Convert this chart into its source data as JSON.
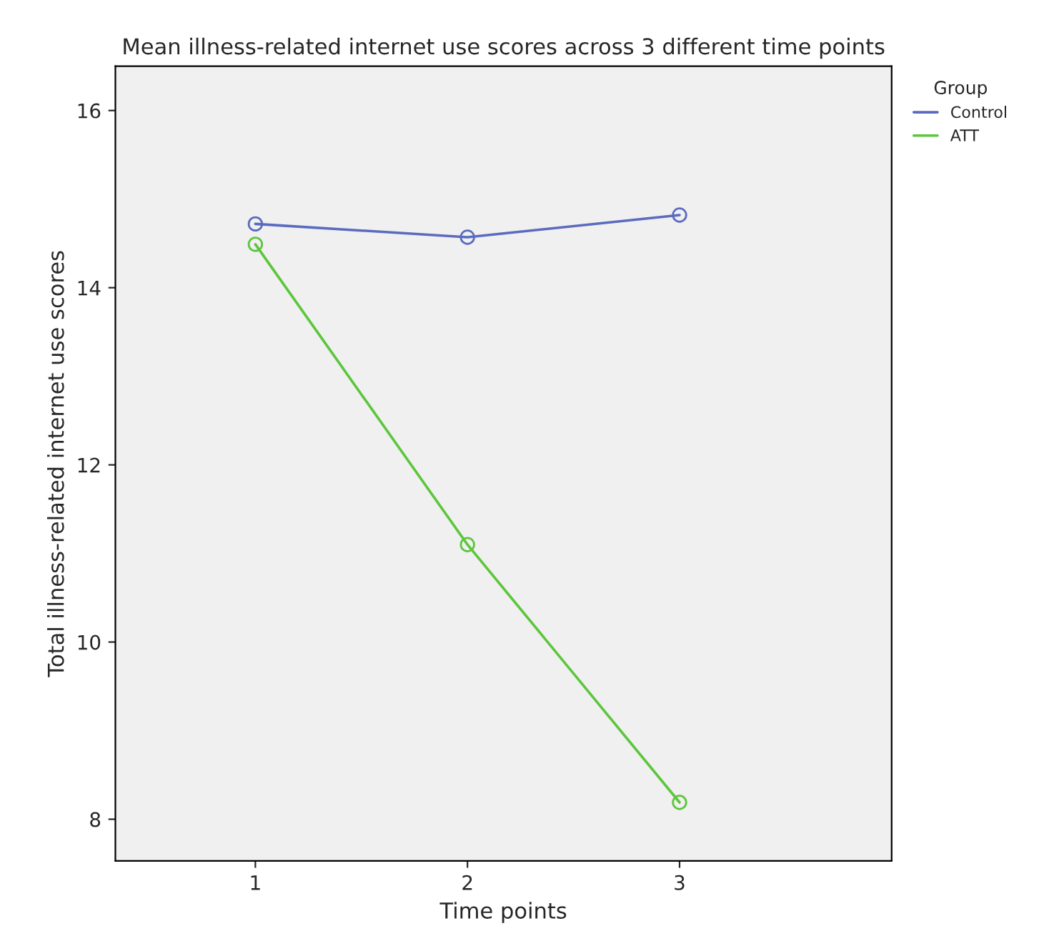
{
  "chart_data": {
    "type": "line",
    "title": "Mean illness-related internet use scores across 3 different time points",
    "xlabel": "Time points",
    "ylabel": "Total illness-related internet use scores",
    "legend_title": "Group",
    "x": [
      1,
      2,
      3
    ],
    "series": [
      {
        "name": "Control",
        "color": "#5a6bc0",
        "values": [
          14.72,
          14.57,
          14.82
        ]
      },
      {
        "name": "ATT",
        "color": "#5cc63c",
        "values": [
          14.49,
          11.1,
          8.19
        ]
      }
    ],
    "xlim": [
      0.34,
      4.0
    ],
    "xticks": [
      1,
      2,
      3
    ],
    "ylim": [
      7.53,
      16.5
    ],
    "yticks": [
      8,
      10,
      12,
      14,
      16
    ],
    "grid": false,
    "legend": "top right",
    "marker": "circle",
    "line_style": "solid"
  }
}
